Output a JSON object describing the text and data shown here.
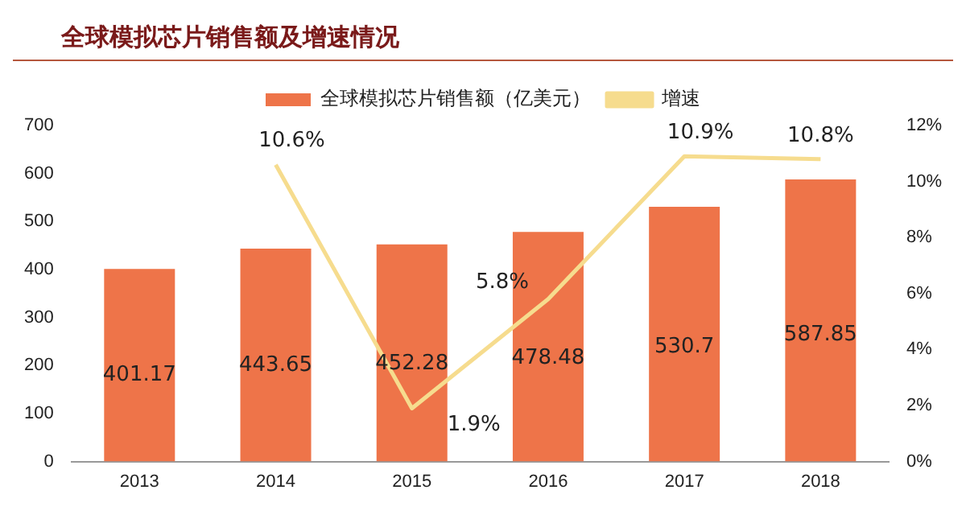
{
  "chart_data": {
    "type": "bar",
    "title": "全球模拟芯片销售额及增速情况",
    "categories": [
      "2013",
      "2014",
      "2015",
      "2016",
      "2017",
      "2018"
    ],
    "series": [
      {
        "name": "全球模拟芯片销售额（亿美元）",
        "color": "#ee7449",
        "values": [
          401.17,
          443.65,
          452.28,
          478.48,
          530.7,
          587.85
        ],
        "data_labels": true
      },
      {
        "name": "增速",
        "type": "line",
        "axis": "y2",
        "color": "#f6dc8e",
        "values": [
          null,
          10.6,
          1.9,
          5.8,
          10.9,
          10.8
        ],
        "value_labels": [
          null,
          "10.6%",
          "1.9%",
          "5.8%",
          "10.9%",
          "10.8%"
        ],
        "marker": "none"
      }
    ],
    "ylim": [
      0,
      700
    ],
    "yticks": [
      0,
      100,
      200,
      300,
      400,
      500,
      600,
      700
    ],
    "y2lim": [
      0,
      12
    ],
    "y2ticks": [
      {
        "value": 0,
        "label": "0%"
      },
      {
        "value": 2,
        "label": "2%"
      },
      {
        "value": 4,
        "label": "4%"
      },
      {
        "value": 6,
        "label": "6%"
      },
      {
        "value": 8,
        "label": "8%"
      },
      {
        "value": 10,
        "label": "10%"
      },
      {
        "value": 12,
        "label": "12%"
      }
    ],
    "grid": false,
    "legend": "top"
  }
}
